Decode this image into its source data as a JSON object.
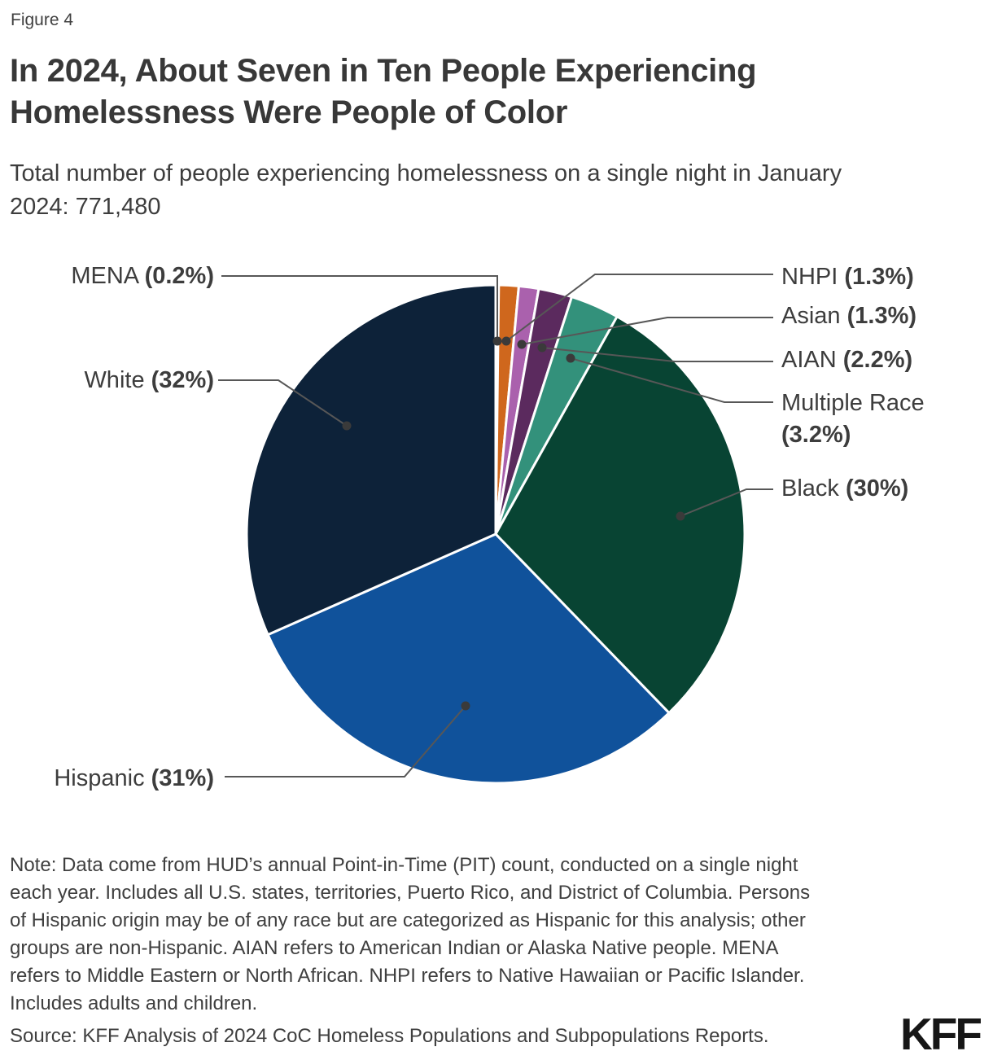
{
  "figure_label": "Figure 4",
  "title": "In 2024, About Seven in Ten People Experiencing Homelessness Were People of Color",
  "title_lines": [
    "In 2024, About Seven in Ten People Experiencing",
    "Homelessness Were People of Color"
  ],
  "subtitle": "Total number of people experiencing homelessness on a single night in January 2024: 771,480",
  "subtitle_lines": [
    "Total number of people experiencing homelessness on a single night in January",
    "2024: 771,480"
  ],
  "chart_data": {
    "type": "pie",
    "title": "In 2024, About Seven in Ten People Experiencing Homelessness Were People of Color",
    "total_label": "Total number of people experiencing homelessness on a single night in January 2024: 771,480",
    "total_value": "771,480",
    "units": "percent",
    "start_angle_deg": 0,
    "direction": "clockwise",
    "slices": [
      {
        "name": "MENA",
        "value": 0.2,
        "pct_label": "(0.2%)",
        "color": "#a0522d"
      },
      {
        "name": "NHPI",
        "value": 1.3,
        "pct_label": "(1.3%)",
        "color": "#cf671d"
      },
      {
        "name": "Asian",
        "value": 1.3,
        "pct_label": "(1.3%)",
        "color": "#aa61ad"
      },
      {
        "name": "AIAN",
        "value": 2.2,
        "pct_label": "(2.2%)",
        "color": "#5b2a5e"
      },
      {
        "name": "Multiple Race",
        "value": 3.2,
        "pct_label": "(3.2%)",
        "color": "#33917b"
      },
      {
        "name": "Black",
        "value": 30,
        "pct_label": "(30%)",
        "color": "#084433"
      },
      {
        "name": "Hispanic",
        "value": 31,
        "pct_label": "(31%)",
        "color": "#10529b"
      },
      {
        "name": "White",
        "value": 32,
        "pct_label": "(32%)",
        "color": "#0d2239"
      }
    ]
  },
  "note": "Note: Data come from HUD’s annual Point-in-Time (PIT) count, conducted on a single night each year. Includes all U.S. states, territories, Puerto Rico, and District of Columbia. Persons of Hispanic origin may be of any race but are categorized as Hispanic for this analysis; other groups are non-Hispanic. AIAN refers to American Indian or Alaska Native people. MENA refers to Middle Eastern or North African. NHPI refers to Native Hawaiian or Pacific Islander. Includes adults and children.",
  "note_lines": [
    "Note: Data come from HUD’s annual Point-in-Time (PIT) count, conducted on a single night",
    "each year. Includes all U.S. states, territories, Puerto Rico, and District of Columbia. Persons",
    "of Hispanic origin may be of any race but are categorized as Hispanic for this analysis; other",
    "groups are non-Hispanic. AIAN refers to American Indian or Alaska Native people. MENA",
    "refers to Middle Eastern or North African. NHPI refers to Native Hawaiian or Pacific Islander.",
    "Includes adults and children."
  ],
  "source": "Source: KFF Analysis of 2024 CoC Homeless Populations and Subpopulations Reports.",
  "logo": "KFF"
}
